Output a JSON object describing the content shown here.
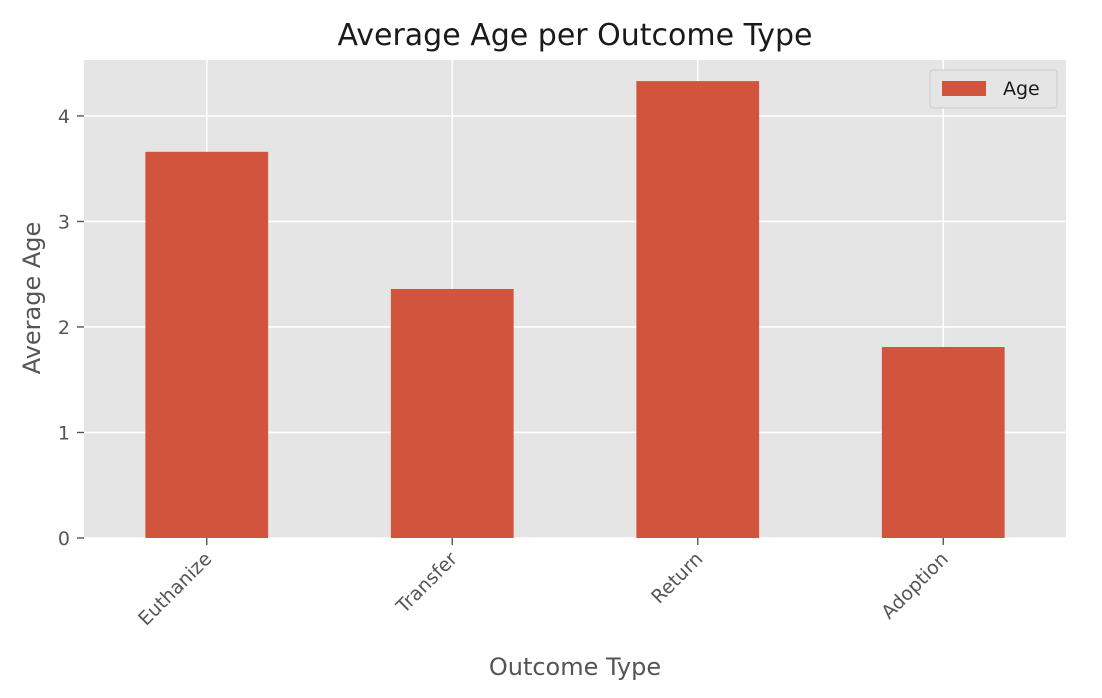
{
  "chart_data": {
    "type": "bar",
    "title": "Average Age per Outcome Type",
    "xlabel": "Outcome Type",
    "ylabel": "Average Age",
    "categories": [
      "Euthanize",
      "Transfer",
      "Return",
      "Adoption"
    ],
    "series": [
      {
        "name": "Age",
        "values": [
          3.66,
          2.36,
          4.33,
          1.81
        ],
        "color": "#d1553d"
      }
    ],
    "ylim": [
      0,
      4.53
    ],
    "yticks": [
      0,
      1,
      2,
      3,
      4
    ],
    "ytick_labels": [
      "0",
      "1",
      "2",
      "3",
      "4"
    ],
    "grid": true,
    "legend_position": "top-right",
    "colors": {
      "plot_background": "#e5e5e5",
      "grid": "#ffffff",
      "bar": "#d1553d"
    }
  }
}
